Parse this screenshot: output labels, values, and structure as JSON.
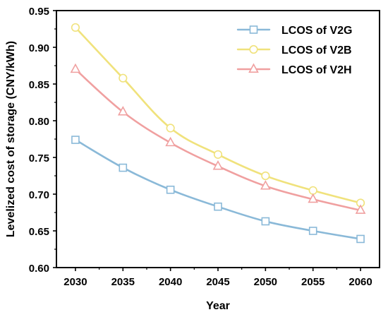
{
  "chart_data": {
    "type": "line",
    "title": "",
    "xlabel": "Year",
    "ylabel": "Levelized cost of storage (CNY/kWh)",
    "x": [
      2030,
      2035,
      2040,
      2045,
      2050,
      2055,
      2060
    ],
    "xlim": [
      2028,
      2062
    ],
    "ylim": [
      0.6,
      0.95
    ],
    "x_ticks": [
      "2030",
      "2035",
      "2040",
      "2045",
      "2050",
      "2055",
      "2060"
    ],
    "y_ticks": [
      "0.60",
      "0.65",
      "0.70",
      "0.75",
      "0.80",
      "0.85",
      "0.90",
      "0.95"
    ],
    "grid": false,
    "legend_position": "top-right",
    "series": [
      {
        "name": "LCOS of V2G",
        "values": [
          0.774,
          0.736,
          0.706,
          0.683,
          0.663,
          0.65,
          0.639
        ],
        "color": "#8ab9d8",
        "marker": "square"
      },
      {
        "name": "LCOS of V2B",
        "values": [
          0.927,
          0.858,
          0.79,
          0.754,
          0.725,
          0.705,
          0.688
        ],
        "color": "#f0e27c",
        "marker": "circle"
      },
      {
        "name": "LCOS of V2H",
        "values": [
          0.87,
          0.812,
          0.77,
          0.738,
          0.711,
          0.693,
          0.678
        ],
        "color": "#f0a0a0",
        "marker": "triangle"
      }
    ]
  }
}
